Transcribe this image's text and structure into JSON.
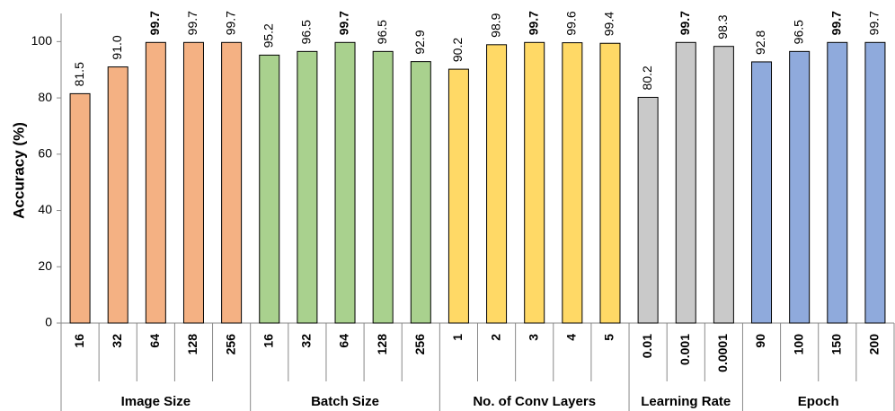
{
  "chart_data": {
    "type": "grouped-bar",
    "y_label": "Accuracy (%)",
    "ylim": [
      0,
      110
    ],
    "yticks": [
      0,
      20,
      40,
      60,
      80,
      100
    ],
    "groups": [
      {
        "name": "Image Size",
        "color": "#F4B183",
        "categories": [
          "16",
          "32",
          "64",
          "128",
          "256"
        ],
        "values": [
          81.5,
          91.0,
          99.7,
          99.7,
          99.7
        ],
        "value_labels": [
          "81.5",
          "91.0",
          "99.7",
          "99.7",
          "99.7"
        ],
        "bold_label_index": 2
      },
      {
        "name": "Batch Size",
        "color": "#A9D18E",
        "categories": [
          "16",
          "32",
          "64",
          "128",
          "256"
        ],
        "values": [
          95.2,
          96.5,
          99.7,
          96.5,
          92.9
        ],
        "value_labels": [
          "95.2",
          "96.5",
          "99.7",
          "96.5",
          "92.9"
        ],
        "bold_label_index": 2
      },
      {
        "name": "No. of Conv Layers",
        "color": "#FFD966",
        "categories": [
          "1",
          "2",
          "3",
          "4",
          "5"
        ],
        "values": [
          90.2,
          98.9,
          99.7,
          99.6,
          99.4
        ],
        "value_labels": [
          "90.2",
          "98.9",
          "99.7",
          "99.6",
          "99.4"
        ],
        "bold_label_index": 2
      },
      {
        "name": "Learning Rate",
        "color": "#C9C9C9",
        "categories": [
          "0.01",
          "0.001",
          "0.0001"
        ],
        "values": [
          80.2,
          99.7,
          98.3
        ],
        "value_labels": [
          "80.2",
          "99.7",
          "98.3"
        ],
        "bold_label_index": 1
      },
      {
        "name": "Epoch",
        "color": "#8FAADC",
        "categories": [
          "90",
          "100",
          "150",
          "200"
        ],
        "values": [
          92.8,
          96.5,
          99.7,
          99.7
        ],
        "value_labels": [
          "92.8",
          "96.5",
          "99.7",
          "99.7"
        ],
        "bold_label_index": 2
      }
    ]
  }
}
